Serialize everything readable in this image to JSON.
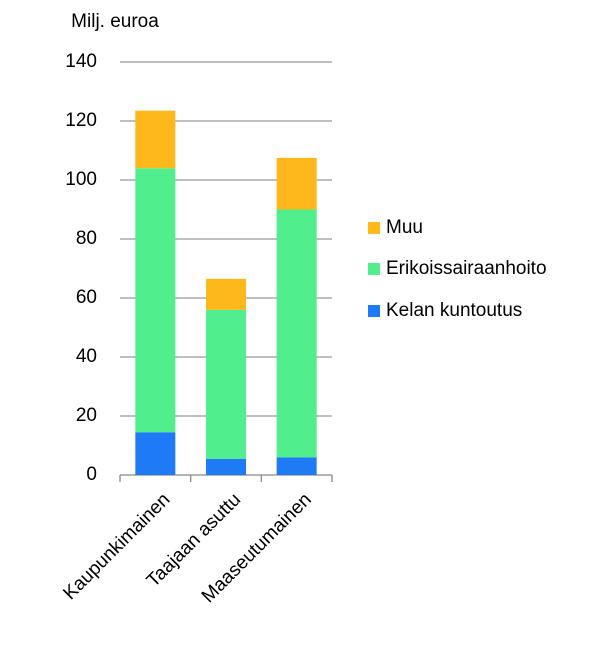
{
  "chart_data": {
    "type": "stacked_bar",
    "y_axis_label": "Milj. euroa",
    "categories": [
      "Kaupunkimainen",
      "Taajaan asuttu",
      "Maaseutumainen"
    ],
    "series": [
      {
        "name": "Kelan kuntoutus",
        "color": "#1f7bf5",
        "values": [
          14.5,
          5.5,
          6
        ]
      },
      {
        "name": "Erikoissairaanhoito",
        "color": "#50ee8c",
        "values": [
          89.5,
          50.5,
          84
        ]
      },
      {
        "name": "Muu",
        "color": "#ffb81c",
        "values": [
          19.5,
          10.5,
          17.5
        ]
      }
    ],
    "ylim": [
      0,
      140
    ],
    "yticks": [
      0,
      20,
      40,
      60,
      80,
      100,
      120,
      140
    ],
    "grid": true,
    "legend": "right"
  }
}
